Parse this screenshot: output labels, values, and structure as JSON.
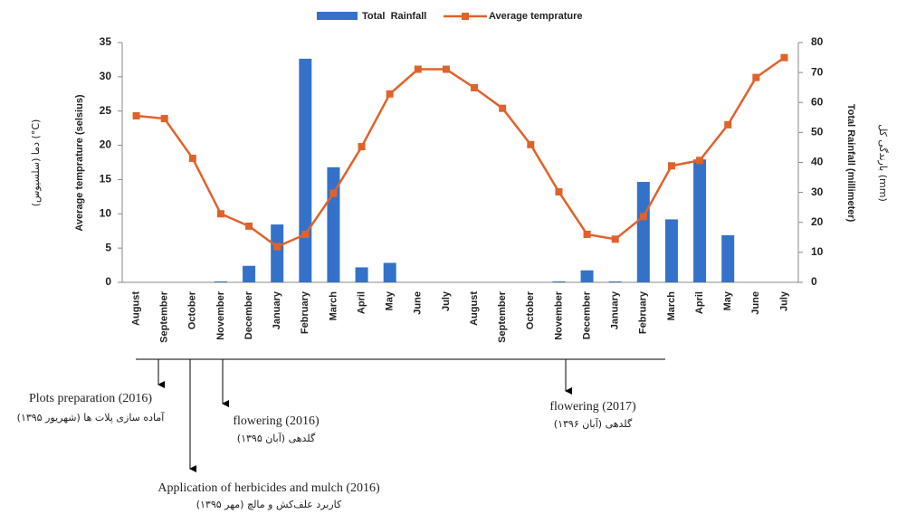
{
  "chart_data": {
    "type": "bar",
    "categories": [
      "August",
      "September",
      "October",
      "November",
      "December",
      "January",
      "February",
      "March",
      "April",
      "May",
      "June",
      "July",
      "August",
      "September",
      "October",
      "November",
      "December",
      "January",
      "February",
      "March",
      "April",
      "May",
      "June",
      "July"
    ],
    "series": [
      {
        "name": "Total  Rainfall",
        "type": "bar",
        "axis": "y2",
        "color": "#3472c9",
        "values": [
          0,
          0,
          0,
          0.3,
          5.5,
          19.3,
          74.6,
          38.4,
          5,
          6.5,
          0,
          0,
          0,
          0,
          0,
          0.3,
          4,
          0.3,
          33.5,
          21,
          41,
          15.7,
          0,
          0
        ]
      },
      {
        "name": "Average temprature",
        "type": "line",
        "axis": "y",
        "color": "#e0622a",
        "values": [
          24.3,
          23.9,
          18.1,
          10,
          8.2,
          5.2,
          7,
          13,
          19.8,
          27.5,
          31.1,
          31.1,
          28.4,
          25.4,
          20.1,
          13.2,
          7,
          6.3,
          9.6,
          17,
          17.8,
          23,
          29.9,
          32.8
        ]
      }
    ],
    "y_label": "Average temprature (selsius)",
    "y_label_fa": "دما (سلسیوس) (°C)",
    "y2_label": "Total Rainfall (millimeter)",
    "y2_label_fa": "بارندگی کل (mm)",
    "ylim": [
      0,
      35
    ],
    "yticks": [
      0,
      5,
      10,
      15,
      20,
      25,
      30,
      35
    ],
    "y2lim": [
      0,
      80
    ],
    "y2ticks": [
      0,
      10,
      20,
      30,
      40,
      50,
      60,
      70,
      80
    ],
    "legend": "top",
    "annotations": [
      {
        "text": "Plots preparation (2016)",
        "text_fa": "آماده سازی پلات ها (شهریور ۱۳۹۵)"
      },
      {
        "text": "Application of herbicides and mulch (2016)",
        "text_fa": "کاربرد علف‌کش و مالچ (مهر ۱۳۹۵)"
      },
      {
        "text": "flowering (2016)",
        "text_fa": "گلدهی (آبان ۱۳۹۵)"
      },
      {
        "text": "flowering (2017)",
        "text_fa": "گلدهی (آبان ۱۳۹۶)"
      }
    ]
  }
}
